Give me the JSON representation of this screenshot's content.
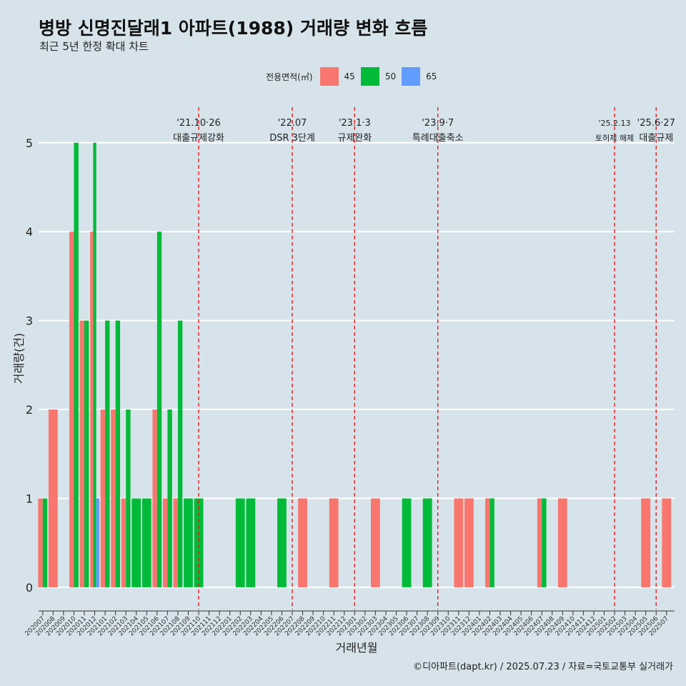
{
  "chart_data": {
    "type": "bar",
    "title": "병방 신명진달래1 아파트(1988) 거래량 변화 흐름",
    "subtitle": "최근 5년 한정 확대 차트",
    "xlabel": "거래년월",
    "ylabel": "거래량(건)",
    "caption": "©디아파트(dapt.kr) / 2025.07.23 / 자료=국토교통부 실거래가",
    "ylim": [
      -0.25,
      5.4
    ],
    "yticks": [
      0,
      1,
      2,
      3,
      4,
      5
    ],
    "grid": "horizontal",
    "legend_position": "top",
    "legend_title": "전용면적(㎡)",
    "categories": [
      "202007",
      "202008",
      "202009",
      "202010",
      "202011",
      "202012",
      "202101",
      "202102",
      "202103",
      "202104",
      "202105",
      "202106",
      "202107",
      "202108",
      "202109",
      "202110",
      "202111",
      "202112",
      "202201",
      "202202",
      "202203",
      "202204",
      "202205",
      "202206",
      "202207",
      "202208",
      "202209",
      "202210",
      "202211",
      "202212",
      "202301",
      "202302",
      "202303",
      "202304",
      "202305",
      "202306",
      "202307",
      "202308",
      "202309",
      "202310",
      "202311",
      "202312",
      "202401",
      "202402",
      "202403",
      "202404",
      "202405",
      "202406",
      "202407",
      "202408",
      "202409",
      "202410",
      "202411",
      "202412",
      "202501",
      "202502",
      "202503",
      "202504",
      "202505",
      "202506",
      "202507"
    ],
    "series": [
      {
        "name": "45",
        "color": "#f8766d",
        "values": [
          1,
          2,
          0,
          4,
          3,
          4,
          2,
          2,
          1,
          0,
          0,
          2,
          1,
          1,
          0,
          0,
          0,
          0,
          0,
          0,
          0,
          0,
          0,
          0,
          0,
          1,
          0,
          0,
          1,
          0,
          0,
          0,
          1,
          0,
          0,
          0,
          0,
          0,
          0,
          0,
          1,
          1,
          0,
          1,
          0,
          0,
          0,
          0,
          1,
          0,
          1,
          0,
          0,
          0,
          0,
          0,
          0,
          0,
          1,
          0,
          1
        ]
      },
      {
        "name": "50",
        "color": "#00ba38",
        "values": [
          1,
          0,
          0,
          5,
          3,
          5,
          3,
          3,
          2,
          1,
          1,
          4,
          2,
          3,
          1,
          1,
          0,
          0,
          0,
          1,
          1,
          0,
          0,
          1,
          0,
          0,
          0,
          0,
          0,
          0,
          0,
          0,
          0,
          0,
          0,
          1,
          0,
          1,
          0,
          0,
          0,
          0,
          0,
          1,
          0,
          0,
          0,
          0,
          1,
          0,
          0,
          0,
          0,
          0,
          0,
          0,
          0,
          0,
          0,
          0,
          0
        ]
      },
      {
        "name": "65",
        "color": "#619cff",
        "values": [
          0,
          0,
          0,
          0,
          0,
          1,
          0,
          0,
          0,
          0,
          0,
          0,
          0,
          0,
          0,
          0,
          0,
          0,
          0,
          0,
          0,
          0,
          0,
          0,
          0,
          0,
          0,
          0,
          0,
          0,
          0,
          0,
          0,
          0,
          0,
          0,
          0,
          0,
          0,
          0,
          0,
          0,
          0,
          0,
          0,
          0,
          0,
          0,
          0,
          0,
          0,
          0,
          0,
          0,
          0,
          0,
          0,
          0,
          0,
          0,
          0
        ]
      }
    ],
    "annotations": [
      {
        "x": "202110",
        "line1": "'21.10·26",
        "line2": "대출규제강화"
      },
      {
        "x": "202207",
        "line1": "'22.07",
        "line2": "DSR 3단계"
      },
      {
        "x": "202301",
        "line1": "'23.1·3",
        "line2": "규제완화"
      },
      {
        "x": "202309",
        "line1": "'23.9·7",
        "line2": "특례대출축소"
      },
      {
        "x": "202502",
        "line1": "'25.2.13",
        "line2": "토허제 해제"
      },
      {
        "x": "202506",
        "line1": "'25.6·27",
        "line2": "대출규제"
      }
    ]
  }
}
